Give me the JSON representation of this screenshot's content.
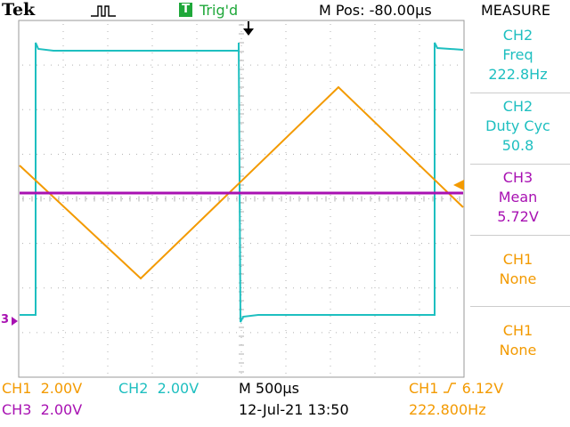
{
  "header": {
    "brand": "Tek",
    "trigger_badge": "T",
    "trigger_state": "Trig'd",
    "position": "M Pos: -80.00µs",
    "menu_title": "MEASURE"
  },
  "measurements": [
    {
      "channel": "CH2",
      "type": "Freq",
      "value": "222.8Hz",
      "color": "#1ebfc0"
    },
    {
      "channel": "CH2",
      "type": "Duty Cyc",
      "value": "50.8",
      "color": "#1ebfc0"
    },
    {
      "channel": "CH3",
      "type": "Mean",
      "value": "5.72V",
      "color": "#a811b2"
    },
    {
      "channel": "CH1",
      "type": "None",
      "value": "",
      "color": "#f39a00"
    },
    {
      "channel": "CH1",
      "type": "None",
      "value": "",
      "color": "#f39a00"
    }
  ],
  "footer": {
    "ch1_scale_label": "CH1",
    "ch1_scale_value": "2.00V",
    "ch2_scale_label": "CH2",
    "ch2_scale_value": "2.00V",
    "ch3_scale_label": "CH3",
    "ch3_scale_value": "2.00V",
    "timebase": "M 500µs",
    "datetime": "12-Jul-21 13:50",
    "trigger_source": "CH1",
    "trigger_level": "6.12V",
    "trigger_freq": "222.800Hz"
  },
  "markers": {
    "ch3_ground": "3"
  },
  "colors": {
    "ch1": "#f39a00",
    "ch2": "#1ebfc0",
    "ch3": "#a811b2",
    "grid": "#b0b0b0"
  },
  "waveforms": {
    "ch1": {
      "shape": "triangle",
      "frequency_hz": 222.8
    },
    "ch2": {
      "shape": "square",
      "frequency_hz": 222.8,
      "duty_cycle_pct": 50.8
    },
    "ch3": {
      "shape": "dc",
      "mean_v": 5.72
    }
  }
}
